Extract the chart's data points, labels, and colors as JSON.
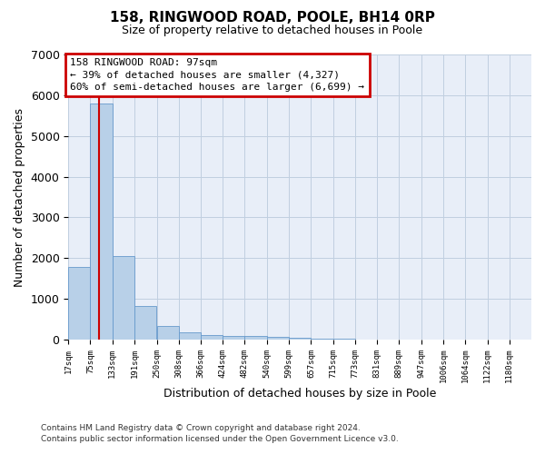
{
  "title": "158, RINGWOOD ROAD, POOLE, BH14 0RP",
  "subtitle": "Size of property relative to detached houses in Poole",
  "xlabel": "Distribution of detached houses by size in Poole",
  "ylabel": "Number of detached properties",
  "bar_edges": [
    17,
    75,
    133,
    191,
    250,
    308,
    366,
    424,
    482,
    540,
    599,
    657,
    715,
    773,
    831,
    889,
    947,
    1006,
    1064,
    1122,
    1180
  ],
  "bar_heights": [
    1780,
    5800,
    2060,
    820,
    340,
    185,
    110,
    97,
    82,
    78,
    48,
    25,
    15,
    8,
    4,
    2,
    1,
    0,
    0,
    0,
    0
  ],
  "bar_color": "#b8d0e8",
  "bar_edge_color": "#6699cc",
  "grid_color": "#c0cfe0",
  "background_color": "#e8eef8",
  "red_line_x": 97,
  "annotation_text": "158 RINGWOOD ROAD: 97sqm\n← 39% of detached houses are smaller (4,327)\n60% of semi-detached houses are larger (6,699) →",
  "annotation_box_facecolor": "#ffffff",
  "annotation_box_edgecolor": "#cc0000",
  "ylim_max": 7000,
  "yticks": [
    0,
    1000,
    2000,
    3000,
    4000,
    5000,
    6000,
    7000
  ],
  "footnote1": "Contains HM Land Registry data © Crown copyright and database right 2024.",
  "footnote2": "Contains public sector information licensed under the Open Government Licence v3.0."
}
